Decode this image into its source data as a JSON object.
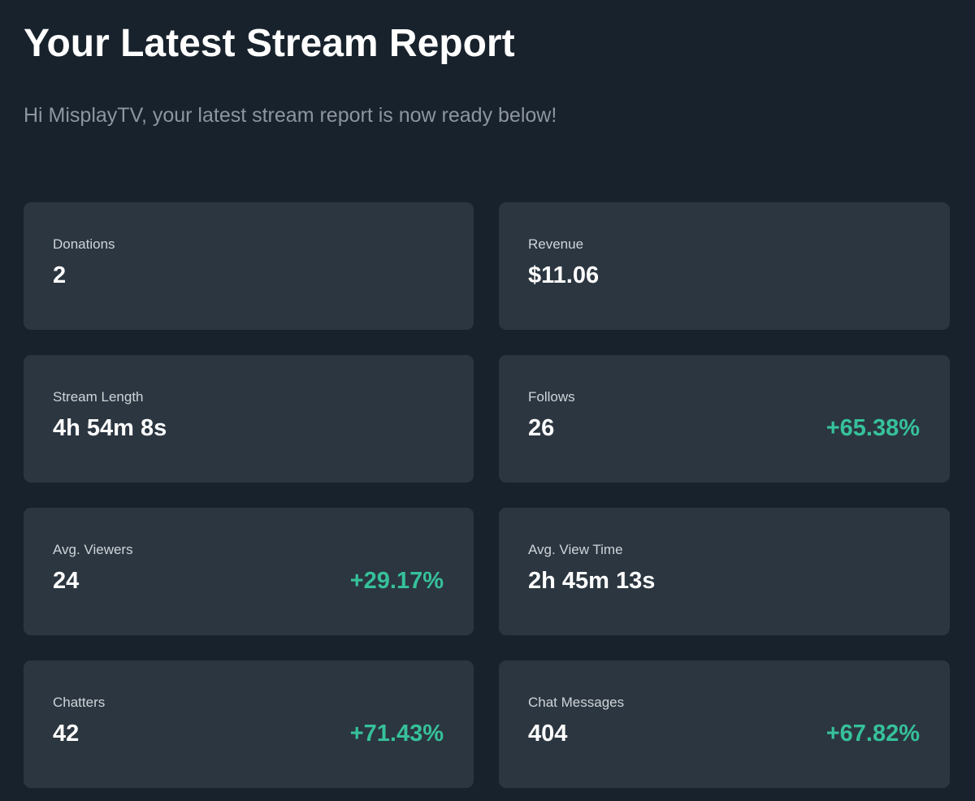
{
  "header": {
    "title": "Your Latest Stream Report",
    "subtitle": "Hi MisplayTV, your latest stream report is now ready below!"
  },
  "colors": {
    "background": "#18222c",
    "card": "#2b3640",
    "positive_delta": "#36c19a"
  },
  "stats": [
    {
      "key": "donations",
      "label": "Donations",
      "value": "2",
      "delta": null
    },
    {
      "key": "revenue",
      "label": "Revenue",
      "value": "$11.06",
      "delta": null
    },
    {
      "key": "stream-length",
      "label": "Stream Length",
      "value": "4h 54m 8s",
      "delta": null
    },
    {
      "key": "follows",
      "label": "Follows",
      "value": "26",
      "delta": "+65.38%"
    },
    {
      "key": "avg-viewers",
      "label": "Avg. Viewers",
      "value": "24",
      "delta": "+29.17%"
    },
    {
      "key": "avg-view-time",
      "label": "Avg. View Time",
      "value": "2h 45m 13s",
      "delta": null
    },
    {
      "key": "chatters",
      "label": "Chatters",
      "value": "42",
      "delta": "+71.43%"
    },
    {
      "key": "chat-messages",
      "label": "Chat Messages",
      "value": "404",
      "delta": "+67.82%"
    }
  ]
}
